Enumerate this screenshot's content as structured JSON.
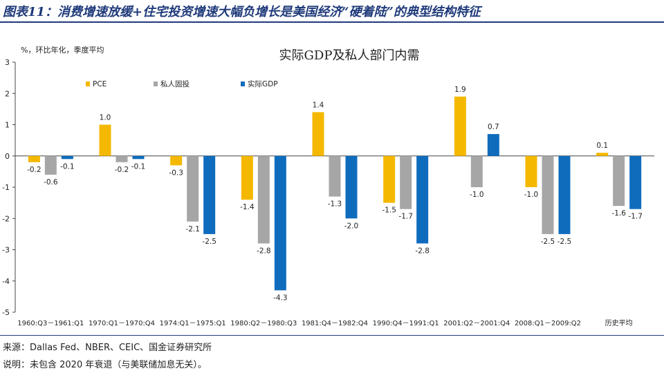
{
  "figure": {
    "title": "图表11：消费增速放缓+住宅投资增速大幅负增长是美国经济“硬着陆”的典型结构特征",
    "source": "来源：Dallas Fed、NBER、CEIC、国金证券研究所",
    "note": "说明：未包含 2020 年衰退（与美联储加息无关）。"
  },
  "chart_data": {
    "type": "bar",
    "title": "实际GDP及私人部门内需",
    "unit_label": "%，环比年化，季度平均",
    "categories": [
      "1960:Q3－1961:Q1",
      "1970:Q1－1970:Q4",
      "1974:Q1－1975:Q1",
      "1980:Q2－1980:Q3",
      "1981:Q4－1982:Q4",
      "1990:Q4－1991:Q1",
      "2001:Q2－2001:Q4",
      "2008:Q1－2009:Q2",
      "历史平均"
    ],
    "series": [
      {
        "name": "PCE",
        "color": "#f5b800",
        "values": [
          -0.2,
          1.0,
          -0.3,
          -1.4,
          1.4,
          -1.5,
          1.9,
          -1.0,
          0.1
        ]
      },
      {
        "name": "私人固投",
        "color": "#a6a6a6",
        "values": [
          -0.6,
          -0.2,
          -2.1,
          -2.8,
          -1.3,
          -1.7,
          -1.0,
          -2.5,
          -1.6
        ]
      },
      {
        "name": "实际GDP",
        "color": "#0f6cbd",
        "values": [
          -0.1,
          -0.1,
          -2.5,
          -4.3,
          -2.0,
          -2.8,
          0.7,
          -2.5,
          -1.7
        ]
      }
    ],
    "data_labels": [
      [
        "-0.2",
        "1.0",
        "-0.3",
        "-1.4",
        "1.4",
        "-1.5",
        "1.9",
        "-1.0",
        "0.1"
      ],
      [
        "-0.6",
        "-0.2",
        "-2.1",
        "-2.8",
        "-1.3",
        "-1.7",
        "-1.0",
        "-2.5",
        "-1.6"
      ],
      [
        "-0.1",
        "-0.1",
        "-2.5",
        "-4.3",
        "-2.0",
        "-2.8",
        "0.7",
        "-2.5",
        "-1.7"
      ]
    ],
    "ylim": [
      -5,
      3
    ],
    "yticks": [
      3,
      2,
      1,
      0,
      -1,
      -2,
      -3,
      -4,
      -5
    ],
    "legend_position": "top-left",
    "grid": false
  }
}
